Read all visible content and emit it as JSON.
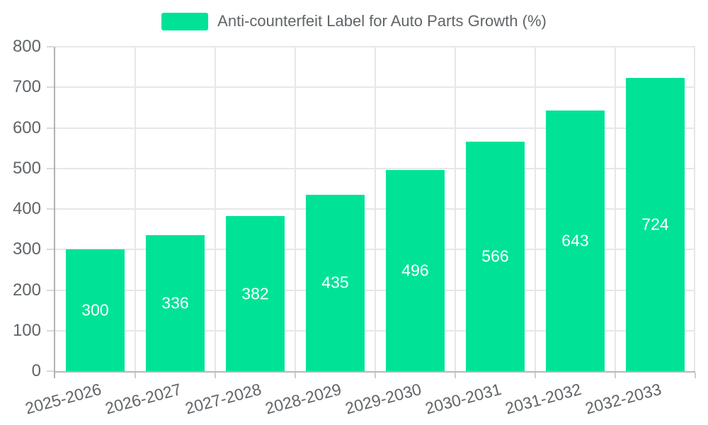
{
  "chart_data": {
    "type": "bar",
    "title": "",
    "legend": "Anti-counterfeit Label for Auto Parts Growth (%)",
    "legend_position": "top",
    "categories": [
      "2025-2026",
      "2026-2027",
      "2027-2028",
      "2028-2029",
      "2029-2030",
      "2030-2031",
      "2031-2032",
      "2032-2033"
    ],
    "values": [
      300,
      336,
      382,
      435,
      496,
      566,
      643,
      724
    ],
    "xlabel": "",
    "ylabel": "",
    "ylim": [
      0,
      800
    ],
    "yticks": [
      0,
      100,
      200,
      300,
      400,
      500,
      600,
      700,
      800
    ],
    "grid": true,
    "bar_color": "#00E396",
    "value_label_color": "#ffffff",
    "axis_text_color": "#606568",
    "grid_color": "#e7e7e7",
    "x_label_rotation_deg": -15
  }
}
